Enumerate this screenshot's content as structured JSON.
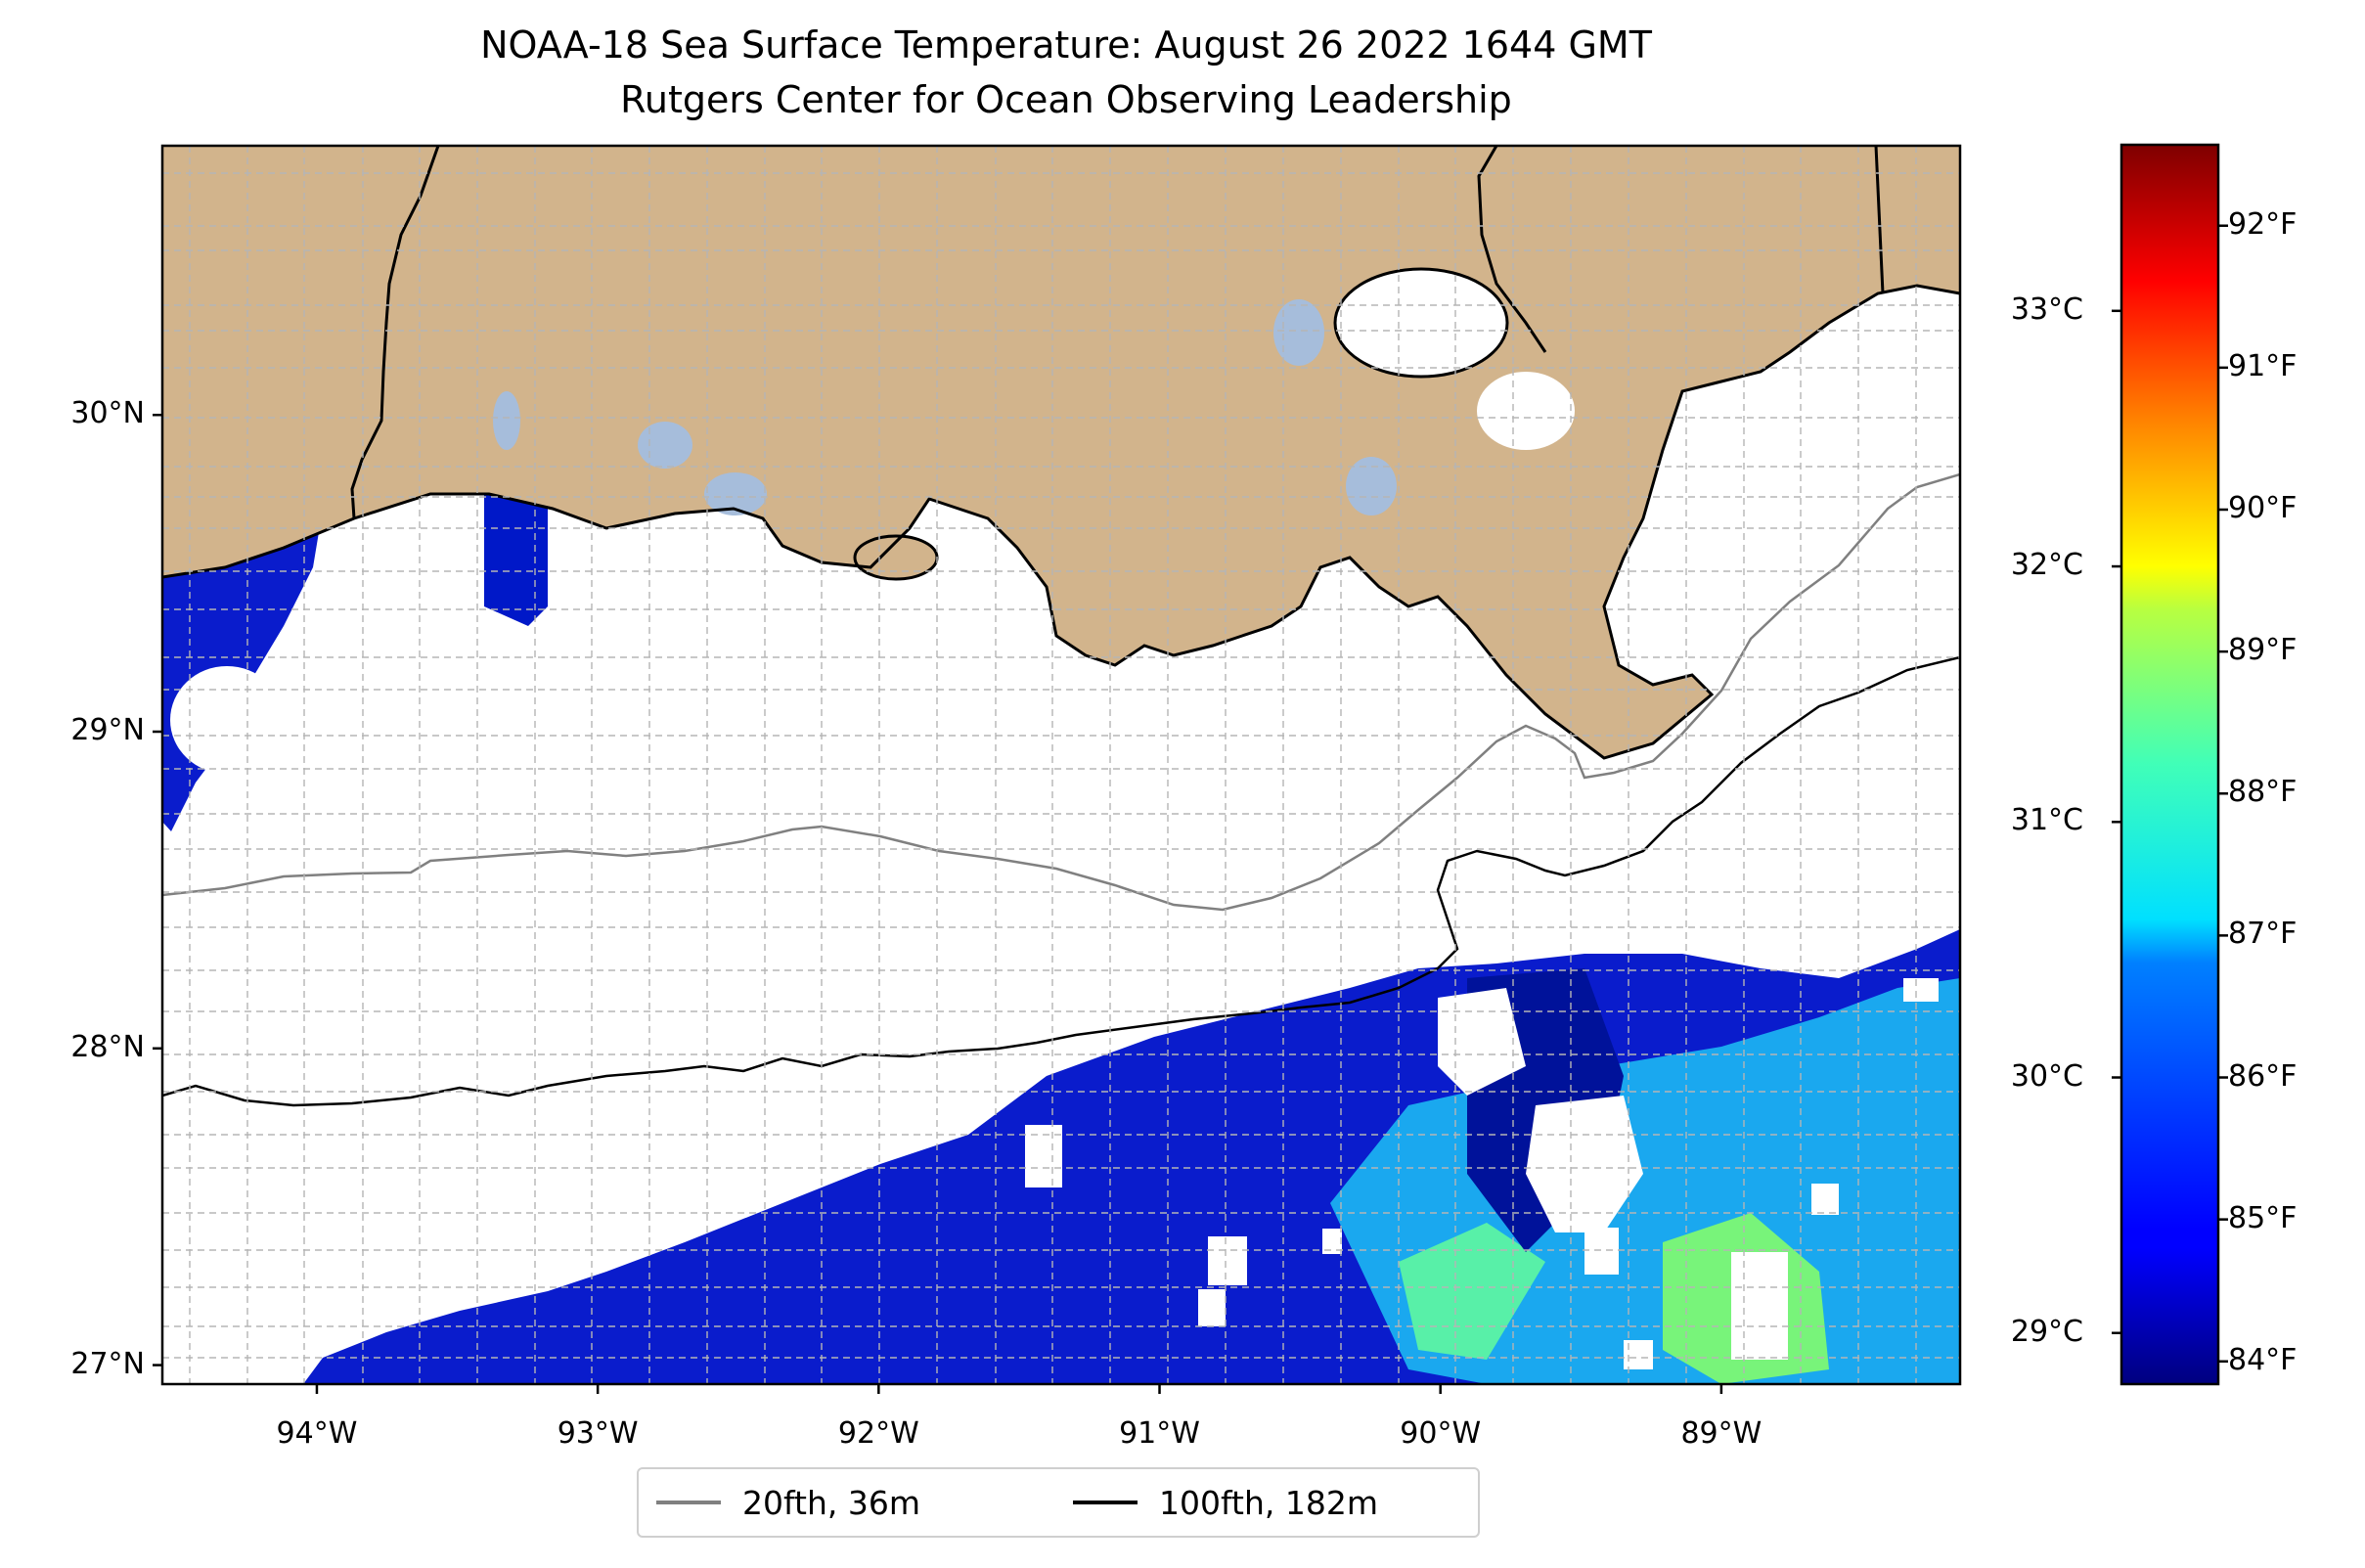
{
  "title": {
    "line1": "NOAA-18 Sea Surface Temperature: August 26 2022 1644 GMT",
    "line2": "Rutgers Center for Ocean Observing Leadership"
  },
  "map": {
    "lon_range": [
      -94.55,
      -88.15
    ],
    "lat_range": [
      26.94,
      30.85
    ],
    "lon_ticks": [
      -94,
      -93,
      -92,
      -91,
      -90,
      -89
    ],
    "lat_ticks": [
      27,
      28,
      29,
      30
    ],
    "lon_tick_labels": [
      "94°W",
      "93°W",
      "92°W",
      "91°W",
      "90°W",
      "89°W"
    ],
    "lat_tick_labels": [
      "27°N",
      "28°N",
      "29°N",
      "30°N"
    ],
    "gridlines": true,
    "land_color": "#d2b48c",
    "lake_color": "#a6bddb"
  },
  "colorbar": {
    "colormap": "jet",
    "celsius_range": [
      28.8,
      33.65
    ],
    "celsius_ticks": [
      29,
      30,
      31,
      32,
      33
    ],
    "celsius_labels": [
      "29°C",
      "30°C",
      "31°C",
      "32°C",
      "33°C"
    ],
    "fahrenheit_ticks": [
      84,
      85,
      86,
      87,
      88,
      89,
      90,
      91,
      92
    ],
    "fahrenheit_labels": [
      "84°F",
      "85°F",
      "86°F",
      "87°F",
      "88°F",
      "89°F",
      "90°F",
      "91°F",
      "92°F"
    ]
  },
  "legend": {
    "placement": "bottom-center",
    "items": [
      {
        "label": "20fth, 36m",
        "color": "#808080"
      },
      {
        "label": "100fth, 182m",
        "color": "#000000"
      }
    ]
  }
}
